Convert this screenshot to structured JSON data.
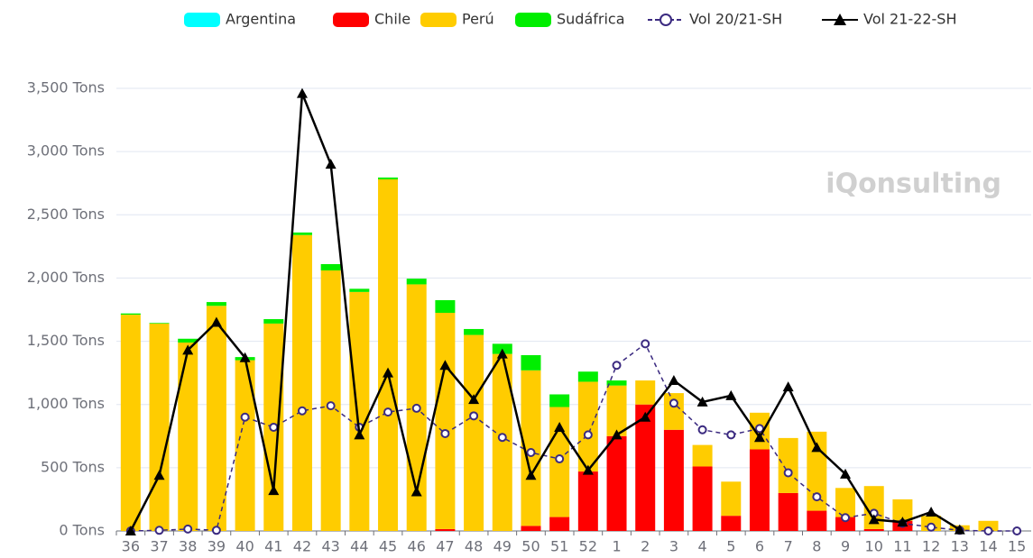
{
  "chart_data": {
    "type": "stacked-bar-line",
    "watermark": "iQonsulting",
    "categories": [
      "36",
      "37",
      "38",
      "39",
      "40",
      "41",
      "42",
      "43",
      "44",
      "45",
      "46",
      "47",
      "48",
      "49",
      "50",
      "51",
      "52",
      "1",
      "2",
      "3",
      "4",
      "5",
      "6",
      "7",
      "8",
      "9",
      "10",
      "11",
      "12",
      "13",
      "14",
      "15"
    ],
    "ylim": [
      0,
      3500
    ],
    "yticks": [
      {
        "value": 0,
        "label": "0 Tons"
      },
      {
        "value": 500,
        "label": "500 Tons"
      },
      {
        "value": 1000,
        "label": "1,000 Tons"
      },
      {
        "value": 1500,
        "label": "1,500 Tons"
      },
      {
        "value": 2000,
        "label": "2,000 Tons"
      },
      {
        "value": 2500,
        "label": "2,500 Tons"
      },
      {
        "value": 3000,
        "label": "3,000 Tons"
      },
      {
        "value": 3500,
        "label": "3,500 Tons"
      }
    ],
    "grid": true,
    "series": [
      {
        "name": "Argentina",
        "kind": "bar",
        "color": "#00ffff",
        "values": [
          0,
          0,
          0,
          0,
          0,
          0,
          0,
          0,
          0,
          0,
          0,
          0,
          0,
          0,
          0,
          0,
          0,
          0,
          0,
          0,
          0,
          0,
          0,
          0,
          0,
          0,
          0,
          0,
          0,
          0,
          0,
          0
        ]
      },
      {
        "name": "Chile",
        "kind": "bar",
        "color": "#ff0000",
        "values": [
          0,
          0,
          0,
          0,
          0,
          0,
          0,
          0,
          0,
          0,
          0,
          15,
          0,
          0,
          40,
          110,
          470,
          750,
          1000,
          800,
          510,
          120,
          645,
          300,
          160,
          110,
          15,
          80,
          0,
          0,
          0,
          0
        ]
      },
      {
        "name": "Perú",
        "kind": "bar",
        "color": "#ffcc00",
        "values": [
          1710,
          1640,
          1490,
          1780,
          1350,
          1640,
          2340,
          2060,
          1890,
          2780,
          1950,
          1710,
          1550,
          1400,
          1230,
          870,
          710,
          400,
          190,
          290,
          170,
          270,
          290,
          435,
          625,
          230,
          340,
          170,
          120,
          45,
          80,
          0
        ]
      },
      {
        "name": "Sudáfrica",
        "kind": "bar",
        "color": "#00ee00",
        "values": [
          10,
          5,
          30,
          30,
          25,
          35,
          20,
          50,
          25,
          15,
          45,
          100,
          47,
          80,
          120,
          100,
          80,
          40,
          0,
          0,
          0,
          0,
          0,
          0,
          0,
          0,
          0,
          0,
          0,
          0,
          0,
          0
        ]
      },
      {
        "name": "Vol 20/21-SH",
        "kind": "line",
        "color": "#3b2a80",
        "dashed": true,
        "marker": "circle",
        "values": [
          0,
          5,
          15,
          5,
          900,
          820,
          950,
          990,
          820,
          940,
          970,
          770,
          910,
          740,
          620,
          570,
          760,
          1310,
          1480,
          1010,
          800,
          760,
          810,
          460,
          270,
          105,
          140,
          60,
          30,
          5,
          0,
          0
        ]
      },
      {
        "name": "Vol 21-22-SH",
        "kind": "line",
        "color": "#000000",
        "dashed": false,
        "marker": "triangle",
        "values": [
          0,
          440,
          1430,
          1650,
          1370,
          320,
          3460,
          2900,
          760,
          1250,
          310,
          1310,
          1040,
          1400,
          440,
          820,
          480,
          760,
          900,
          1190,
          1020,
          1070,
          740,
          1140,
          660,
          450,
          90,
          70,
          150,
          10,
          null,
          null
        ]
      }
    ]
  }
}
